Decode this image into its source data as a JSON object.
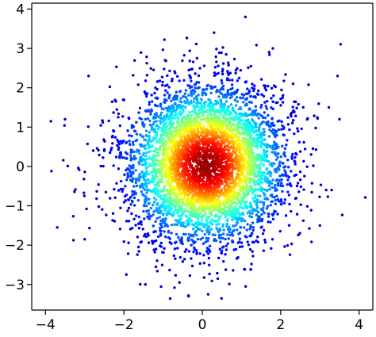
{
  "chart_data": {
    "type": "scatter",
    "title": "",
    "xlabel": "",
    "ylabel": "",
    "xlim": [
      -4.35,
      4.35
    ],
    "ylim": [
      -3.65,
      4.15
    ],
    "xticks": [
      -4,
      -2,
      0,
      2,
      4
    ],
    "yticks": [
      -3,
      -2,
      -1,
      0,
      1,
      2,
      3,
      4
    ],
    "xtick_labels": [
      "−4",
      "−2",
      "0",
      "2",
      "4"
    ],
    "ytick_labels": [
      "−3",
      "−2",
      "−1",
      "0",
      "1",
      "2",
      "3",
      "4"
    ],
    "grid": false,
    "legend": "none",
    "colormap": "jet",
    "color_encoding": "point density (low = dark blue, high = dark red)",
    "distribution": {
      "kind": "bivariate normal",
      "n_points": 5000,
      "x_mean": 0.1,
      "y_mean": 0.05,
      "x_std": 1.0,
      "y_std": 1.0
    },
    "outlier_points": [
      {
        "x": 1.1,
        "y": 3.8
      },
      {
        "x": -1.45,
        "y": -3.0
      },
      {
        "x": -3.7,
        "y": -1.55
      },
      {
        "x": 3.45,
        "y": 2.3
      },
      {
        "x": 3.5,
        "y": 1.2
      },
      {
        "x": -3.5,
        "y": 1.2
      },
      {
        "x": 0.3,
        "y": 3.4
      },
      {
        "x": 1.8,
        "y": 3.0
      },
      {
        "x": -0.35,
        "y": -3.3
      },
      {
        "x": 0.15,
        "y": -3.25
      },
      {
        "x": 3.0,
        "y": -1.5
      },
      {
        "x": -2.9,
        "y": 2.3
      },
      {
        "x": 3.3,
        "y": -0.6
      },
      {
        "x": -3.0,
        "y": -1.85
      }
    ]
  }
}
